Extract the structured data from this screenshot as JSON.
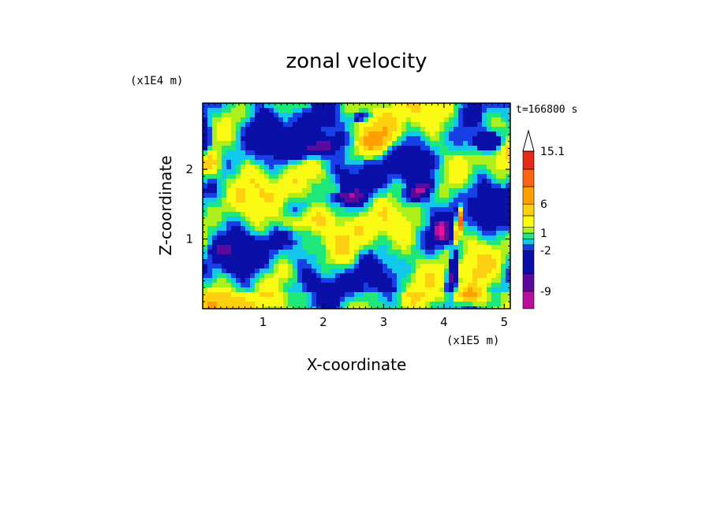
{
  "chart_data": {
    "type": "heatmap",
    "title": "zonal velocity",
    "xlabel": "X-coordinate",
    "ylabel": "Z-coordinate",
    "x_scale_label": "(x1E5 m)",
    "y_scale_label": "(x1E4 m)",
    "time_label": "t=166800 s",
    "xlim": [
      0,
      5.1
    ],
    "ylim": [
      0,
      2.95
    ],
    "x_ticks": [
      "1",
      "2",
      "3",
      "4",
      "5"
    ],
    "y_ticks": [
      "1",
      "2"
    ],
    "x_tick_values": [
      1,
      2,
      3,
      4,
      5
    ],
    "y_tick_values": [
      1,
      2
    ],
    "colorbar": {
      "levels_low_to_high": [
        -12,
        -9,
        -6,
        -2,
        -1,
        0,
        1,
        2,
        4,
        6,
        9,
        12,
        15.1
      ],
      "colors_low_to_high": [
        "#f0109a",
        "#b8109c",
        "#5a0a9c",
        "#0a0fa8",
        "#1640e6",
        "#11c8ec",
        "#1fe87a",
        "#aef01c",
        "#fafa14",
        "#ffd010",
        "#ffa000",
        "#f86414",
        "#e82818",
        "#f06070",
        "#f8c8c8"
      ],
      "tick_labels": [
        "15.1",
        "6",
        "1",
        "-2",
        "-9"
      ],
      "tick_values": [
        15.1,
        6,
        1,
        -2,
        -9
      ],
      "extend": "max"
    },
    "field_description": "wave-like bands of positive (orange/yellow) and negative (cyan/blue) zonal velocity tilted in x-z; strong dipole near x=4.2"
  }
}
